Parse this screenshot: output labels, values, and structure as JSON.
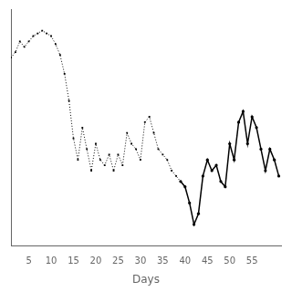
{
  "chart_data": {
    "type": "line",
    "xlabel": "Days",
    "series": [
      {
        "color": "#000000",
        "line_style": "dotted",
        "marker": "square",
        "x": [
          1,
          2,
          3,
          4,
          5,
          6,
          7,
          8,
          9,
          10,
          11,
          12,
          13,
          14,
          15,
          16,
          17,
          18,
          19,
          20,
          21,
          22,
          23,
          24,
          25,
          26,
          27,
          28,
          29,
          30,
          31,
          32,
          33,
          34,
          35,
          36,
          37,
          38,
          39
        ],
        "values": [
          90,
          92,
          96,
          94,
          96,
          98,
          99,
          100,
          99,
          98,
          95,
          91,
          84,
          74,
          60,
          52,
          64,
          56,
          48,
          58,
          52,
          50,
          54,
          48,
          54,
          50,
          62,
          58,
          56,
          52,
          66,
          68,
          62,
          56,
          54,
          52,
          48,
          46,
          44
        ]
      },
      {
        "color": "#000000",
        "line_style": "solid",
        "marker": "circle",
        "x": [
          39,
          40,
          41,
          42,
          43,
          44,
          45,
          46,
          47,
          48,
          49,
          50,
          51,
          52,
          53,
          54,
          55,
          56,
          57,
          58,
          59,
          60,
          61
        ],
        "values": [
          44,
          42,
          36,
          28,
          32,
          46,
          52,
          48,
          50,
          44,
          42,
          58,
          52,
          66,
          70,
          58,
          68,
          64,
          56,
          48,
          56,
          52,
          46
        ]
      }
    ],
    "xlim": [
      1,
      61.5
    ],
    "xticks": [
      5,
      10,
      15,
      20,
      25,
      30,
      35,
      40,
      45,
      50,
      55
    ],
    "ylim": [
      20,
      108
    ],
    "yticks": [],
    "grid": false,
    "tick_labels": "x"
  }
}
